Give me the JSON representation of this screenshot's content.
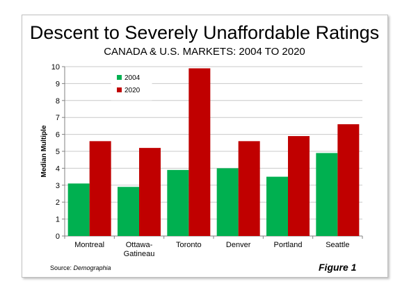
{
  "chart_data": {
    "type": "bar",
    "title": "Descent to Severely Unaffordable Ratings",
    "subtitle": "CANADA & U.S. MARKETS: 2004 TO 2020",
    "ylabel": "Median Multiple",
    "xlabel": "",
    "ylim": [
      0,
      10
    ],
    "yticks": [
      "0",
      "1",
      "2",
      "3",
      "4",
      "5",
      "6",
      "7",
      "8",
      "9",
      "10"
    ],
    "grid": true,
    "legend_position": "top-left",
    "categories": [
      [
        "Montreal"
      ],
      [
        "Ottawa-",
        "Gatineau"
      ],
      [
        "Toronto"
      ],
      [
        "Denver"
      ],
      [
        "Portland"
      ],
      [
        "Seattle"
      ]
    ],
    "series": [
      {
        "name": "2004",
        "color": "#00b050",
        "values": [
          3.1,
          2.9,
          3.9,
          4.0,
          3.5,
          4.9
        ]
      },
      {
        "name": "2020",
        "color": "#c00000",
        "values": [
          5.6,
          5.2,
          9.9,
          5.6,
          5.9,
          6.6
        ]
      }
    ]
  },
  "source": {
    "prefix": "Source: ",
    "name": "Demographia"
  },
  "figure_label": "Figure 1"
}
